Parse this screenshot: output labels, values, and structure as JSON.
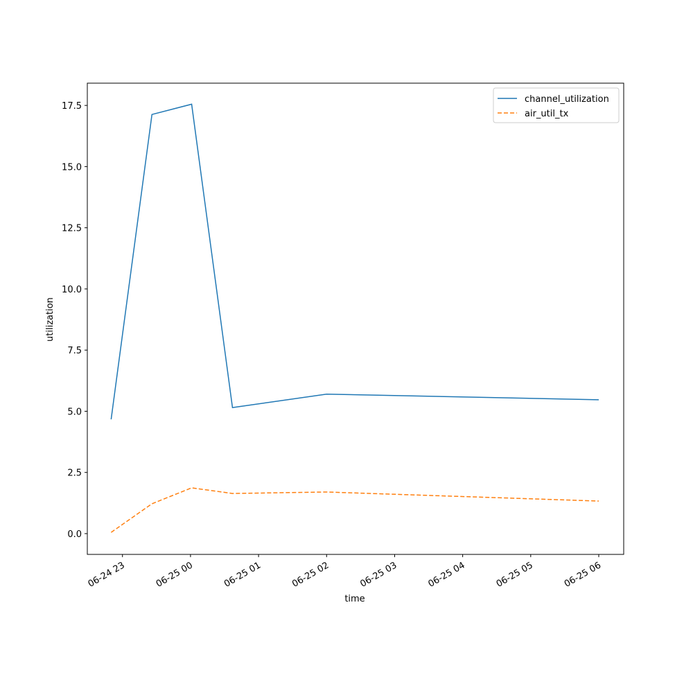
{
  "chart_data": {
    "type": "line",
    "xlabel": "time",
    "ylabel": "utilization",
    "x": [
      "06-24 22:50",
      "06-24 23:26",
      "06-25 00:01",
      "06-25 00:37",
      "06-25 02:00",
      "06-25 06:00"
    ],
    "series": [
      {
        "name": "channel_utilization",
        "color": "#1f77b4",
        "dash": "solid",
        "values": [
          4.67,
          17.13,
          17.55,
          5.15,
          5.7,
          5.47
        ]
      },
      {
        "name": "air_util_tx",
        "color": "#ff7f0e",
        "dash": "dashed",
        "values": [
          0.05,
          1.22,
          1.87,
          1.64,
          1.7,
          1.33
        ]
      }
    ],
    "xlim": [
      "06-24 22:29",
      "06-25 06:22"
    ],
    "xticks": [
      {
        "value": "06-24 23:00",
        "label": "06-24 23"
      },
      {
        "value": "06-25 00:00",
        "label": "06-25 00"
      },
      {
        "value": "06-25 01:00",
        "label": "06-25 01"
      },
      {
        "value": "06-25 02:00",
        "label": "06-25 02"
      },
      {
        "value": "06-25 03:00",
        "label": "06-25 03"
      },
      {
        "value": "06-25 04:00",
        "label": "06-25 04"
      },
      {
        "value": "06-25 05:00",
        "label": "06-25 05"
      },
      {
        "value": "06-25 06:00",
        "label": "06-25 06"
      }
    ],
    "ylim": [
      -0.85,
      18.41
    ],
    "yticks": [
      {
        "value": 0,
        "label": "0.0"
      },
      {
        "value": 2.5,
        "label": "2.5"
      },
      {
        "value": 5,
        "label": "5.0"
      },
      {
        "value": 7.5,
        "label": "7.5"
      },
      {
        "value": 10,
        "label": "10.0"
      },
      {
        "value": 12.5,
        "label": "12.5"
      },
      {
        "value": 15,
        "label": "15.0"
      },
      {
        "value": 17.5,
        "label": "17.5"
      }
    ],
    "legend": "upper right",
    "grid": false
  }
}
